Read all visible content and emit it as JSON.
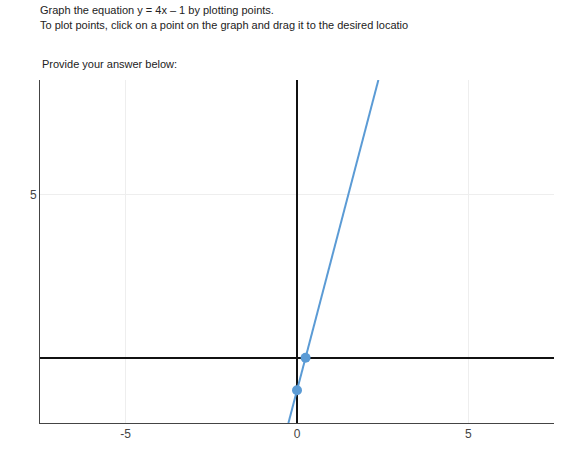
{
  "chart_data": {
    "type": "line",
    "title": "Graph the equation y = 4x – 1 by plotting points.",
    "subtitle": "To plot points, click on a point on the graph and drag it to the desired locatio",
    "annotations": [
      {
        "text": "Provide your answer below:"
      }
    ],
    "series": [
      {
        "type": "line",
        "color": "#5b9bd5",
        "x": [
          -0.25,
          2.375
        ],
        "values": [
          -2,
          8.5
        ]
      },
      {
        "type": "scatter",
        "color": "#5b9bd5",
        "x": [
          0.25,
          0
        ],
        "values": [
          0,
          -1
        ]
      }
    ],
    "xlim": [
      -7.5,
      7.5
    ],
    "ylim": [
      -2.0,
      8.5
    ],
    "xticks": [
      -5,
      0,
      5
    ],
    "yticks": [
      5
    ],
    "grid": true
  }
}
